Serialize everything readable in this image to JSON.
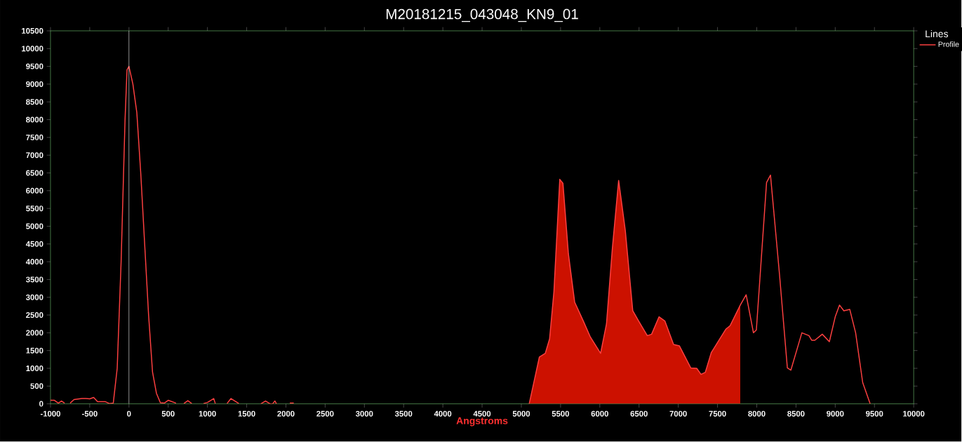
{
  "chart_data": {
    "type": "line",
    "title": "M20181215_043048_KN9_01",
    "xlabel": "Angstroms",
    "legend_title": "Lines",
    "legend": "top right",
    "xlim": [
      -1000,
      10000
    ],
    "ylim": [
      0,
      10500
    ],
    "xticks": [
      -1000,
      -500,
      0,
      500,
      1000,
      1500,
      2000,
      2500,
      3000,
      3500,
      4000,
      4500,
      5000,
      5500,
      6000,
      6500,
      7000,
      7500,
      8000,
      8500,
      9000,
      9500,
      10000
    ],
    "yticks": [
      0,
      500,
      1000,
      1500,
      2000,
      2500,
      3000,
      3500,
      4000,
      4500,
      5000,
      5500,
      6000,
      6500,
      7000,
      7500,
      8000,
      8500,
      9000,
      9500,
      10000,
      10500
    ],
    "ref_lines": [
      {
        "axis": "x",
        "value": 0,
        "color": "#ffffff"
      }
    ],
    "series": [
      {
        "type": "area",
        "color": "#cc1100",
        "x": [
          5100,
          5230,
          5305,
          5360,
          5415,
          5490,
          5530,
          5600,
          5680,
          5790,
          5880,
          6010,
          6085,
          6160,
          6240,
          6325,
          6420,
          6495,
          6605,
          6660,
          6755,
          6830,
          6940,
          7015,
          7160,
          7235,
          7290,
          7345,
          7420,
          7495,
          7605,
          7660,
          7790
        ],
        "values": [
          0,
          1320,
          1420,
          1830,
          3150,
          6320,
          6210,
          4220,
          2860,
          2330,
          1880,
          1420,
          2250,
          4380,
          6290,
          4880,
          2620,
          2330,
          1920,
          1960,
          2450,
          2330,
          1670,
          1630,
          1010,
          1000,
          830,
          890,
          1440,
          1710,
          2100,
          2200,
          2780
        ]
      },
      {
        "name": "Profile",
        "color": "#ff4040",
        "x": [
          -1000,
          -950,
          -900,
          -860,
          -820,
          -790,
          -750,
          -700,
          -600,
          -550,
          -500,
          -450,
          -400,
          -300,
          -250,
          -200,
          -150,
          -100,
          -50,
          -25,
          0,
          50,
          100,
          150,
          200,
          250,
          300,
          350,
          400,
          450,
          500,
          600,
          650,
          700,
          750,
          800,
          880,
          950,
          1000,
          1080,
          1100,
          1180,
          1250,
          1300,
          1400,
          1550,
          1680,
          1740,
          1800,
          1830,
          1860,
          1880,
          1920,
          2000,
          2050,
          2100,
          3000,
          5100,
          5230,
          5305,
          5360,
          5415,
          5490,
          5530,
          5600,
          5680,
          5790,
          5880,
          6010,
          6085,
          6160,
          6240,
          6325,
          6420,
          6495,
          6605,
          6660,
          6755,
          6830,
          6940,
          7015,
          7160,
          7235,
          7290,
          7345,
          7420,
          7495,
          7605,
          7660,
          7790,
          7865,
          7958,
          7995,
          8125,
          8175,
          8290,
          8390,
          8435,
          8575,
          8665,
          8700,
          8740,
          8835,
          8925,
          9000,
          9055,
          9110,
          9185,
          9260,
          9350,
          9445
        ],
        "values": [
          100,
          100,
          20,
          80,
          20,
          null,
          20,
          120,
          150,
          150,
          140,
          180,
          60,
          60,
          10,
          20,
          1000,
          4000,
          8000,
          9400,
          9500,
          9000,
          8200,
          6500,
          4500,
          2500,
          900,
          300,
          30,
          20,
          100,
          20,
          null,
          10,
          90,
          10,
          null,
          10,
          40,
          150,
          10,
          null,
          10,
          150,
          10,
          null,
          0,
          80,
          0,
          0,
          80,
          0,
          null,
          null,
          20,
          20,
          null,
          0,
          1320,
          1420,
          1830,
          3150,
          6320,
          6210,
          4220,
          2860,
          2330,
          1880,
          1420,
          2250,
          4380,
          6290,
          4880,
          2620,
          2330,
          1920,
          1960,
          2450,
          2330,
          1670,
          1630,
          1010,
          1000,
          830,
          890,
          1440,
          1710,
          2100,
          2200,
          2780,
          3070,
          2000,
          2080,
          6230,
          6440,
          3640,
          1010,
          950,
          2000,
          1920,
          1790,
          1790,
          1960,
          1750,
          2450,
          2780,
          2620,
          2660,
          2000,
          600,
          0
        ]
      }
    ]
  }
}
